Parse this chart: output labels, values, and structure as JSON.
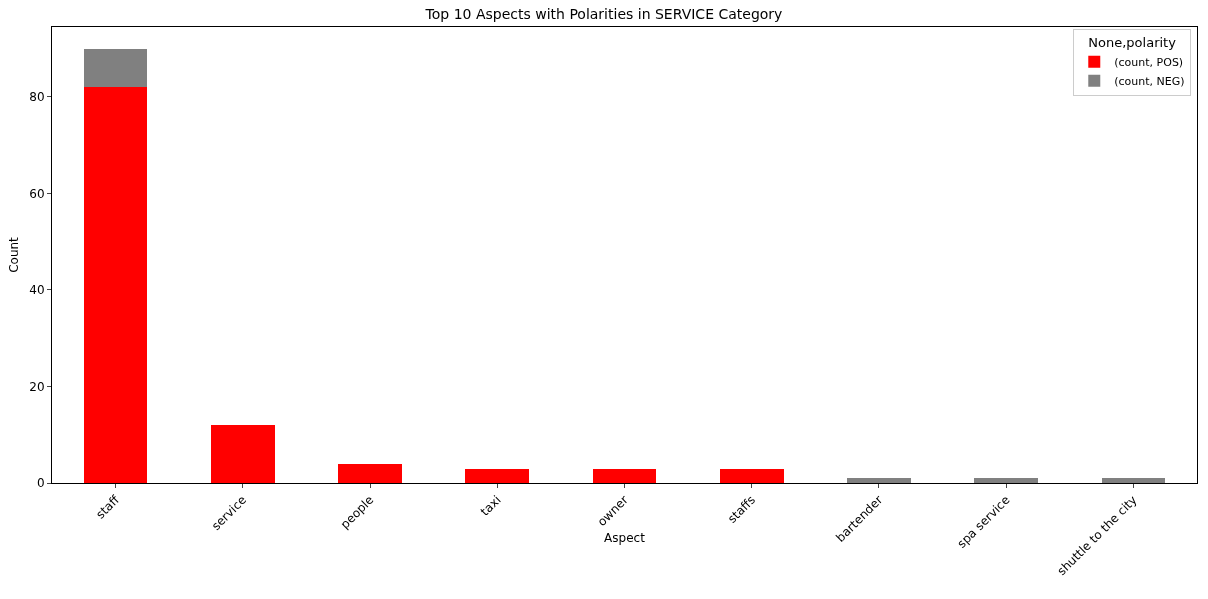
{
  "chart_data": {
    "type": "bar",
    "title": "Top 10 Aspects with Polarities in SERVICE Category",
    "xlabel": "Aspect",
    "ylabel": "Count",
    "legend_title": "None,polarity",
    "categories": [
      "staff",
      "service",
      "people",
      "taxi",
      "owner",
      "staffs",
      "bartender",
      "spa service",
      "shuttle to the city"
    ],
    "series": [
      {
        "name": "(count, POS)",
        "color": "#ff0000",
        "values": [
          82,
          12,
          4,
          3,
          3,
          3,
          0,
          0,
          0
        ]
      },
      {
        "name": "(count, NEG)",
        "color": "#808080",
        "values": [
          8,
          0,
          0,
          0,
          0,
          0,
          1,
          1,
          1
        ]
      }
    ],
    "stacked": true,
    "ylim": [
      0,
      94.5
    ],
    "yticks": [
      0,
      20,
      40,
      60,
      80
    ],
    "grid": false,
    "legend": "top right"
  }
}
